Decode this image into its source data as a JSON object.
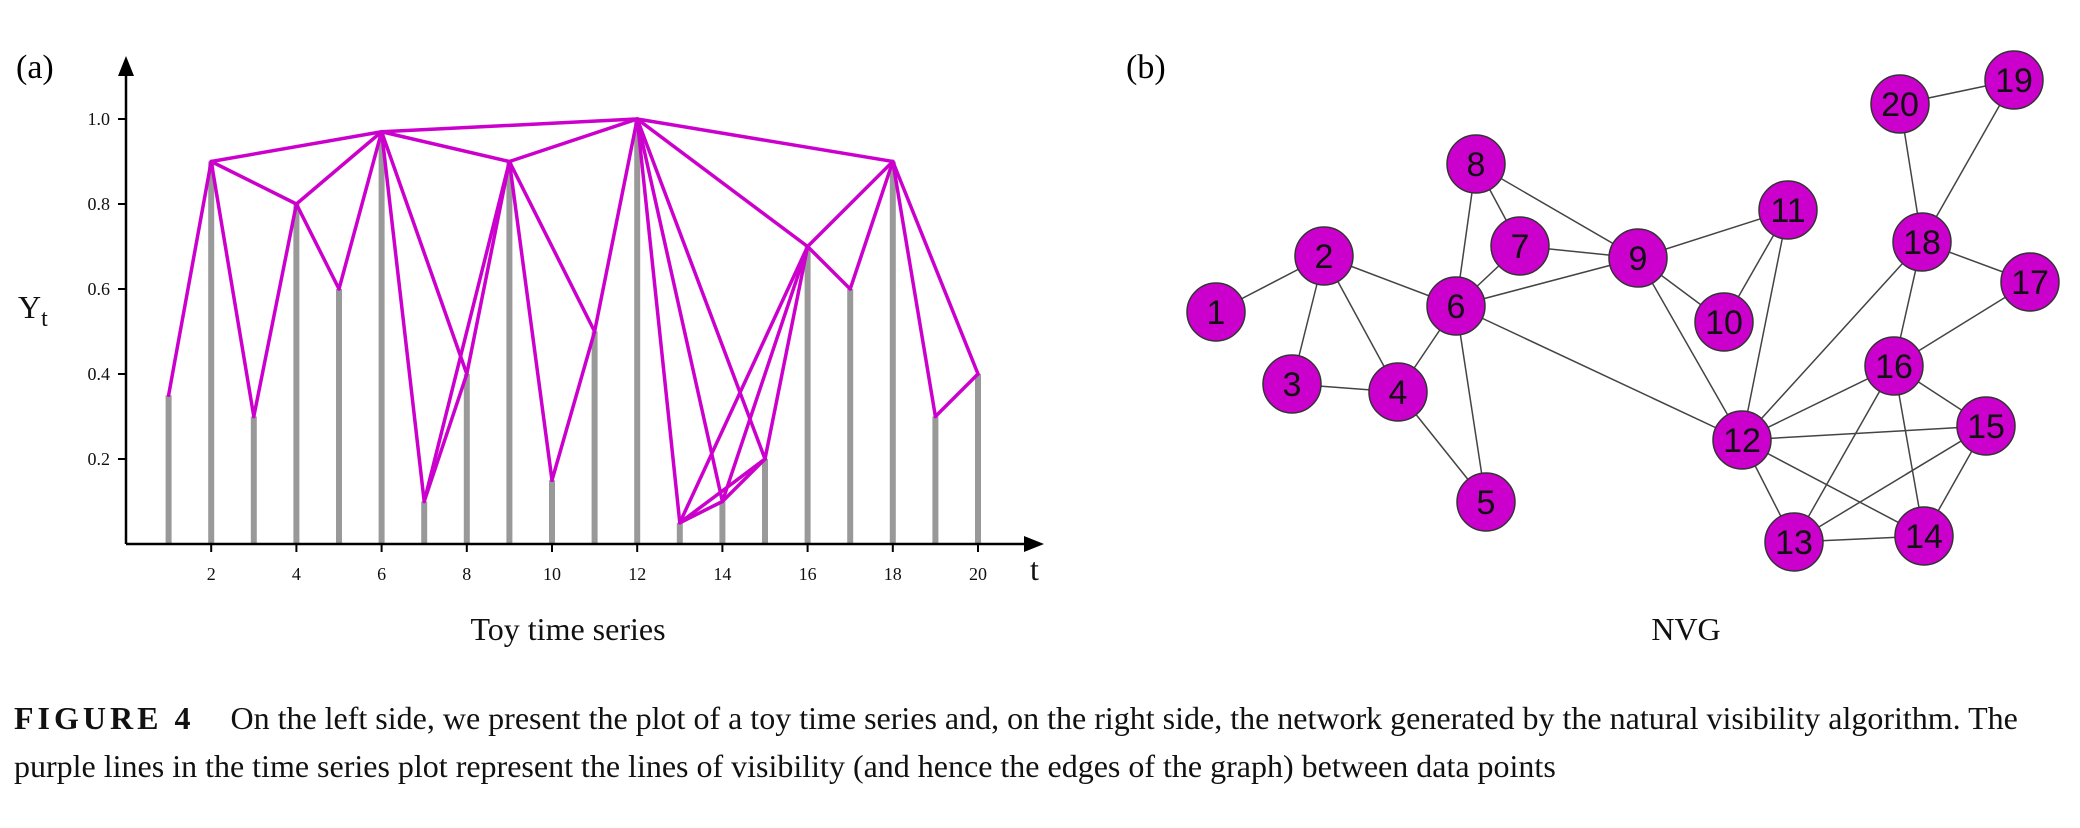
{
  "panels": {
    "a_label": "(a)",
    "b_label": "(b)",
    "a_caption": "Toy time series",
    "b_caption": "NVG"
  },
  "caption": {
    "tag": "FIGURE 4",
    "text": "On the left side, we present the plot of a toy time series and, on the right side, the network generated by the natural visibility algorithm. The purple lines in the time series plot represent the lines of visibility (and hence the edges of the graph) between data points"
  },
  "colors": {
    "visibility": "#cc00cc",
    "bar": "#999999",
    "node_fill": "#cc00cc",
    "node_stroke": "#333333",
    "edge": "#444444",
    "axis": "#000000"
  },
  "chart_data": {
    "type": "bar",
    "title": "Toy time series",
    "xlabel": "t",
    "ylabel": "Y",
    "ylabel_subscript": "t",
    "x": [
      1,
      2,
      3,
      4,
      5,
      6,
      7,
      8,
      9,
      10,
      11,
      12,
      13,
      14,
      15,
      16,
      17,
      18,
      19,
      20
    ],
    "values": [
      0.35,
      0.9,
      0.3,
      0.8,
      0.6,
      0.97,
      0.1,
      0.4,
      0.9,
      0.15,
      0.5,
      1.0,
      0.05,
      0.1,
      0.2,
      0.7,
      0.6,
      0.9,
      0.3,
      0.4
    ],
    "x_ticks": [
      "2",
      "4",
      "6",
      "8",
      "10",
      "12",
      "14",
      "16",
      "18",
      "20"
    ],
    "y_ticks": [
      "0.2",
      "0.4",
      "0.6",
      "0.8",
      "1.0"
    ],
    "y_tick_values": [
      0.2,
      0.4,
      0.6,
      0.8,
      1.0
    ],
    "ylim": [
      0,
      1.0
    ],
    "xlim": [
      0,
      20
    ],
    "visibility_edges": [
      [
        1,
        2
      ],
      [
        2,
        3
      ],
      [
        2,
        4
      ],
      [
        2,
        6
      ],
      [
        3,
        4
      ],
      [
        4,
        5
      ],
      [
        4,
        6
      ],
      [
        5,
        6
      ],
      [
        6,
        7
      ],
      [
        6,
        8
      ],
      [
        6,
        9
      ],
      [
        6,
        12
      ],
      [
        7,
        8
      ],
      [
        7,
        9
      ],
      [
        8,
        9
      ],
      [
        9,
        10
      ],
      [
        9,
        11
      ],
      [
        9,
        12
      ],
      [
        10,
        11
      ],
      [
        11,
        12
      ],
      [
        12,
        13
      ],
      [
        12,
        14
      ],
      [
        12,
        15
      ],
      [
        12,
        16
      ],
      [
        12,
        18
      ],
      [
        13,
        14
      ],
      [
        13,
        15
      ],
      [
        13,
        16
      ],
      [
        14,
        15
      ],
      [
        14,
        16
      ],
      [
        15,
        16
      ],
      [
        16,
        17
      ],
      [
        16,
        18
      ],
      [
        17,
        18
      ],
      [
        18,
        19
      ],
      [
        18,
        20
      ],
      [
        19,
        20
      ]
    ]
  },
  "graph": {
    "nodes": [
      {
        "id": "1",
        "label": "1"
      },
      {
        "id": "2",
        "label": "2"
      },
      {
        "id": "3",
        "label": "3"
      },
      {
        "id": "4",
        "label": "4"
      },
      {
        "id": "5",
        "label": "5"
      },
      {
        "id": "6",
        "label": "6"
      },
      {
        "id": "7",
        "label": "7"
      },
      {
        "id": "8",
        "label": "8"
      },
      {
        "id": "9",
        "label": "9"
      },
      {
        "id": "10",
        "label": "10"
      },
      {
        "id": "11",
        "label": "11"
      },
      {
        "id": "12",
        "label": "12"
      },
      {
        "id": "13",
        "label": "13"
      },
      {
        "id": "14",
        "label": "14"
      },
      {
        "id": "15",
        "label": "15"
      },
      {
        "id": "16",
        "label": "16"
      },
      {
        "id": "17",
        "label": "17"
      },
      {
        "id": "18",
        "label": "18"
      },
      {
        "id": "19",
        "label": "19"
      },
      {
        "id": "20",
        "label": "20"
      }
    ],
    "edges": [
      [
        "1",
        "2"
      ],
      [
        "2",
        "3"
      ],
      [
        "2",
        "4"
      ],
      [
        "2",
        "6"
      ],
      [
        "3",
        "4"
      ],
      [
        "4",
        "5"
      ],
      [
        "4",
        "6"
      ],
      [
        "5",
        "6"
      ],
      [
        "6",
        "7"
      ],
      [
        "6",
        "8"
      ],
      [
        "6",
        "9"
      ],
      [
        "6",
        "12"
      ],
      [
        "7",
        "8"
      ],
      [
        "7",
        "9"
      ],
      [
        "8",
        "9"
      ],
      [
        "9",
        "10"
      ],
      [
        "9",
        "11"
      ],
      [
        "9",
        "12"
      ],
      [
        "10",
        "11"
      ],
      [
        "11",
        "12"
      ],
      [
        "12",
        "13"
      ],
      [
        "12",
        "14"
      ],
      [
        "12",
        "15"
      ],
      [
        "12",
        "16"
      ],
      [
        "12",
        "18"
      ],
      [
        "13",
        "14"
      ],
      [
        "13",
        "15"
      ],
      [
        "13",
        "16"
      ],
      [
        "14",
        "15"
      ],
      [
        "14",
        "16"
      ],
      [
        "15",
        "16"
      ],
      [
        "16",
        "17"
      ],
      [
        "16",
        "18"
      ],
      [
        "17",
        "18"
      ],
      [
        "18",
        "19"
      ],
      [
        "18",
        "20"
      ],
      [
        "19",
        "20"
      ]
    ]
  }
}
